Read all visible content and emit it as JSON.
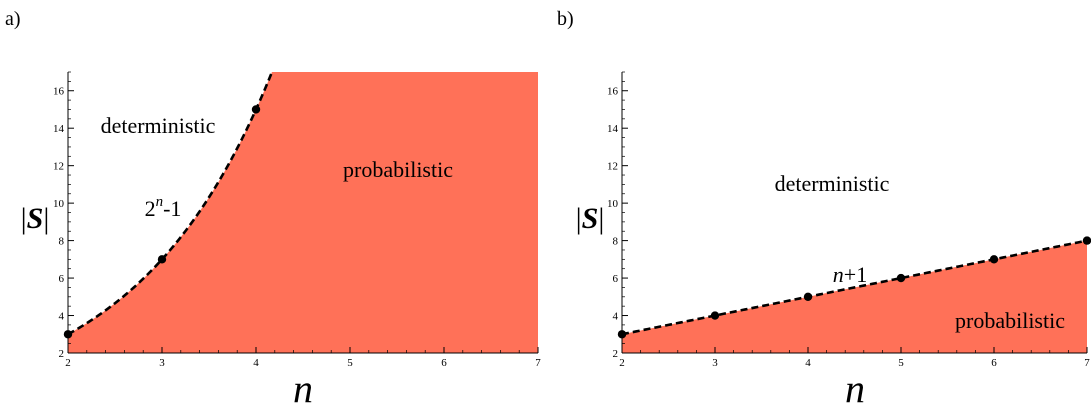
{
  "chart_data": [
    {
      "type": "area",
      "panel_label": "a)",
      "xlabel": "n",
      "ylabel": "|S|",
      "xlim": [
        2,
        7
      ],
      "ylim": [
        2,
        17
      ],
      "x_ticks": [
        "2",
        "3",
        "4",
        "5",
        "6",
        "7"
      ],
      "y_ticks": [
        "2",
        "4",
        "6",
        "8",
        "10",
        "12",
        "14",
        "16"
      ],
      "boundary": "2^n - 1",
      "boundary_label": "2ⁿ-1",
      "points": [
        {
          "x": 2,
          "y": 3
        },
        {
          "x": 3,
          "y": 7
        },
        {
          "x": 4,
          "y": 15
        }
      ],
      "regions": {
        "above": "deterministic",
        "below": "probabilistic"
      },
      "fill_color": "#ff7158",
      "grid": false
    },
    {
      "type": "area",
      "panel_label": "b)",
      "xlabel": "n",
      "ylabel": "|S|",
      "xlim": [
        2,
        7
      ],
      "ylim": [
        2,
        17
      ],
      "x_ticks": [
        "2",
        "3",
        "4",
        "5",
        "6",
        "7"
      ],
      "y_ticks": [
        "2",
        "4",
        "6",
        "8",
        "10",
        "12",
        "14",
        "16"
      ],
      "boundary": "n + 1",
      "boundary_label": "n+1",
      "points": [
        {
          "x": 2,
          "y": 3
        },
        {
          "x": 3,
          "y": 4
        },
        {
          "x": 4,
          "y": 5
        },
        {
          "x": 5,
          "y": 6
        },
        {
          "x": 6,
          "y": 7
        },
        {
          "x": 7,
          "y": 8
        }
      ],
      "regions": {
        "above": "deterministic",
        "below": "probabilistic"
      },
      "fill_color": "#ff7158",
      "grid": false
    }
  ]
}
